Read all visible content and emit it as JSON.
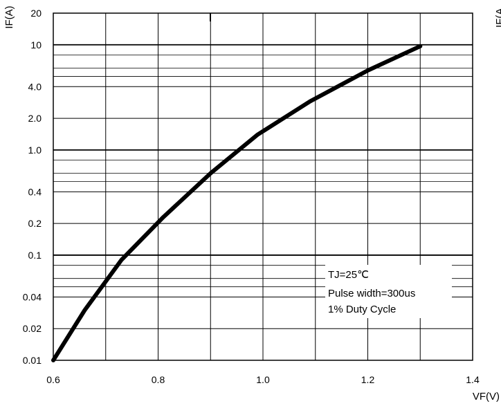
{
  "chart_data": {
    "type": "line",
    "title": "",
    "xlabel": "VF(V)",
    "ylabel": "IF(A)",
    "y_scale": "log",
    "xlim": [
      0.6,
      1.4
    ],
    "ylim": [
      0.01,
      20
    ],
    "x_ticks": [
      {
        "value": 0.6,
        "label": "0.6"
      },
      {
        "value": 0.8,
        "label": "0.8"
      },
      {
        "value": 1.0,
        "label": "1.0"
      },
      {
        "value": 1.2,
        "label": "1.2"
      },
      {
        "value": 1.4,
        "label": "1.4"
      }
    ],
    "y_ticks": [
      {
        "value": 0.01,
        "label": "0.01"
      },
      {
        "value": 0.02,
        "label": "0.02"
      },
      {
        "value": 0.04,
        "label": "0.04"
      },
      {
        "value": 0.1,
        "label": "0.1"
      },
      {
        "value": 0.2,
        "label": "0.2"
      },
      {
        "value": 0.4,
        "label": "0.4"
      },
      {
        "value": 1.0,
        "label": "1.0"
      },
      {
        "value": 2.0,
        "label": "2.0"
      },
      {
        "value": 4.0,
        "label": "4.0"
      },
      {
        "value": 10,
        "label": "10"
      },
      {
        "value": 20,
        "label": "20"
      }
    ],
    "minor_y_gridlines": [
      0.05,
      0.06,
      0.08,
      0.5,
      0.6,
      0.8,
      5,
      6,
      8
    ],
    "x_gridlines": [
      0.6,
      0.7,
      0.8,
      0.9,
      1.0,
      1.1,
      1.2,
      1.3,
      1.4
    ],
    "grid": true,
    "series": [
      {
        "color": "#000000",
        "points": [
          {
            "x": 0.6,
            "y": 0.01
          },
          {
            "x": 0.66,
            "y": 0.03
          },
          {
            "x": 0.73,
            "y": 0.09
          },
          {
            "x": 0.81,
            "y": 0.23
          },
          {
            "x": 0.9,
            "y": 0.6
          },
          {
            "x": 0.99,
            "y": 1.4
          },
          {
            "x": 1.09,
            "y": 2.9
          },
          {
            "x": 1.2,
            "y": 5.7
          },
          {
            "x": 1.3,
            "y": 9.7
          }
        ]
      }
    ],
    "annotations": [
      "TJ=25℃",
      "Pulse width=300us",
      "1% Duty Cycle"
    ],
    "clipped_edge_text": "IF(A"
  }
}
